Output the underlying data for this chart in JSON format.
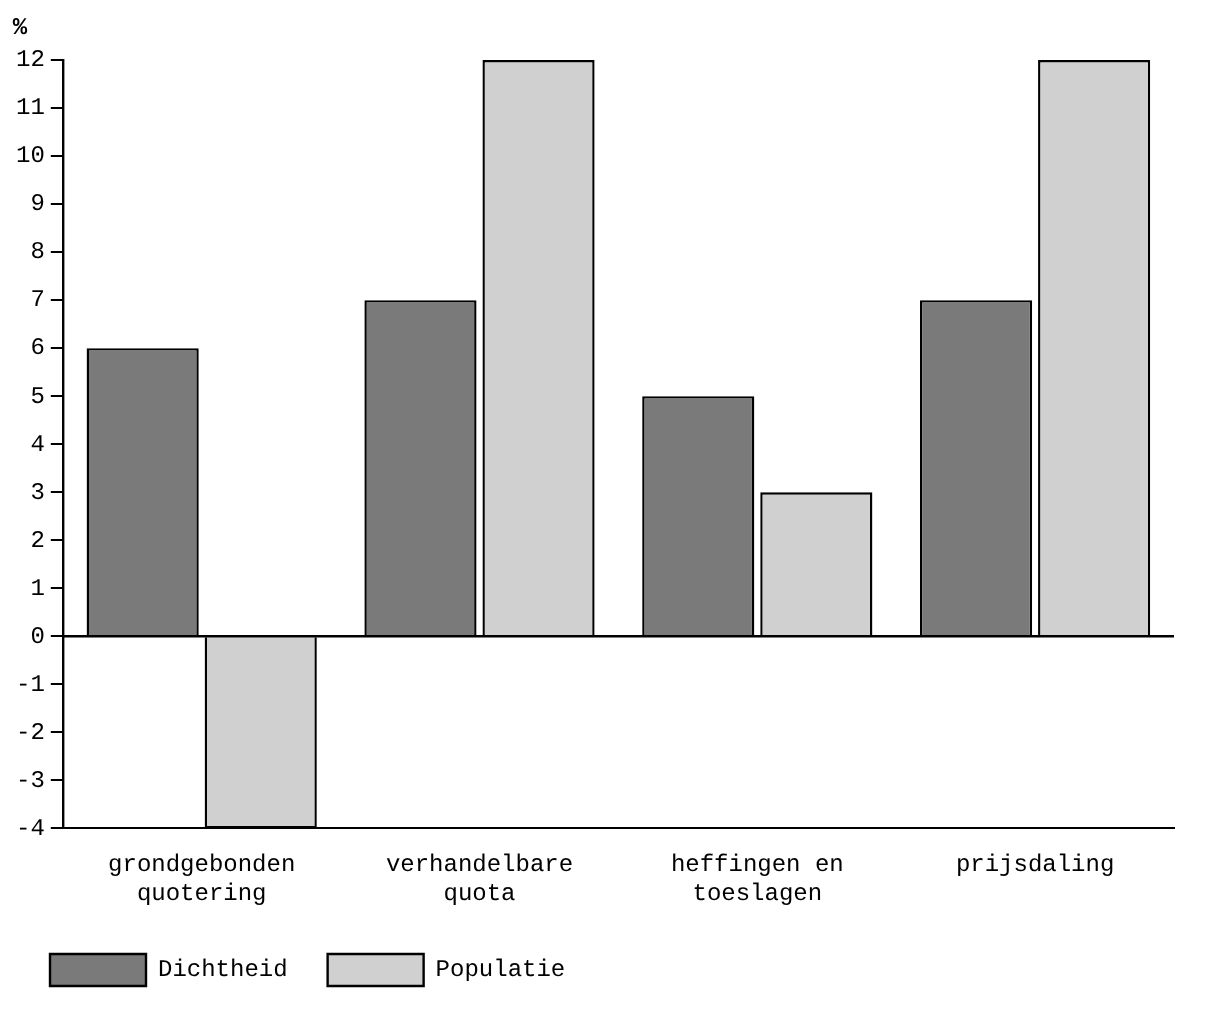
{
  "chart_data": {
    "type": "bar",
    "ylabel": "%",
    "categories": [
      "grondgebonden quotering",
      "verhandelbare quota",
      "heffingen en toeslagen",
      "prijsdaling"
    ],
    "series": [
      {
        "name": "Dichtheid",
        "color": "#7a7a7a",
        "values": [
          6,
          7,
          5,
          7
        ]
      },
      {
        "name": "Populatie",
        "color": "#d0d0d0",
        "values": [
          -4,
          12,
          3,
          12
        ]
      }
    ],
    "ylim": [
      -4,
      12
    ],
    "yticks": [
      -4,
      -3,
      -2,
      -1,
      0,
      1,
      2,
      3,
      4,
      5,
      6,
      7,
      8,
      9,
      10,
      11,
      12
    ],
    "ref_lines": [
      {
        "axis": "y",
        "value": 0
      }
    ],
    "grid": false,
    "legend": "bottom"
  }
}
